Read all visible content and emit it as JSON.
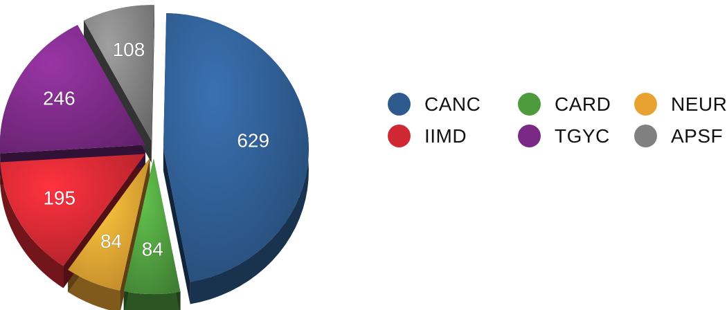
{
  "chart_data": {
    "type": "pie",
    "title": "",
    "categories": [
      "CANC",
      "CARD",
      "NEUR",
      "IIMD",
      "TGYC",
      "APSF"
    ],
    "values": [
      629,
      84,
      84,
      195,
      246,
      108
    ],
    "colors": [
      "#2e5a8e",
      "#4e9b3e",
      "#e8a232",
      "#cf2832",
      "#7a2a85",
      "#808080"
    ],
    "exploded": true,
    "style": "3d",
    "legend": "right",
    "legend_order": [
      {
        "label": "CANC",
        "color": "#2e5a8e"
      },
      {
        "label": "CARD",
        "color": "#4e9b3e"
      },
      {
        "label": "NEUR",
        "color": "#e8a232"
      },
      {
        "label": "IIMD",
        "color": "#cf2832"
      },
      {
        "label": "TGYC",
        "color": "#7a2a85"
      },
      {
        "label": "APSF",
        "color": "#808080"
      }
    ]
  }
}
